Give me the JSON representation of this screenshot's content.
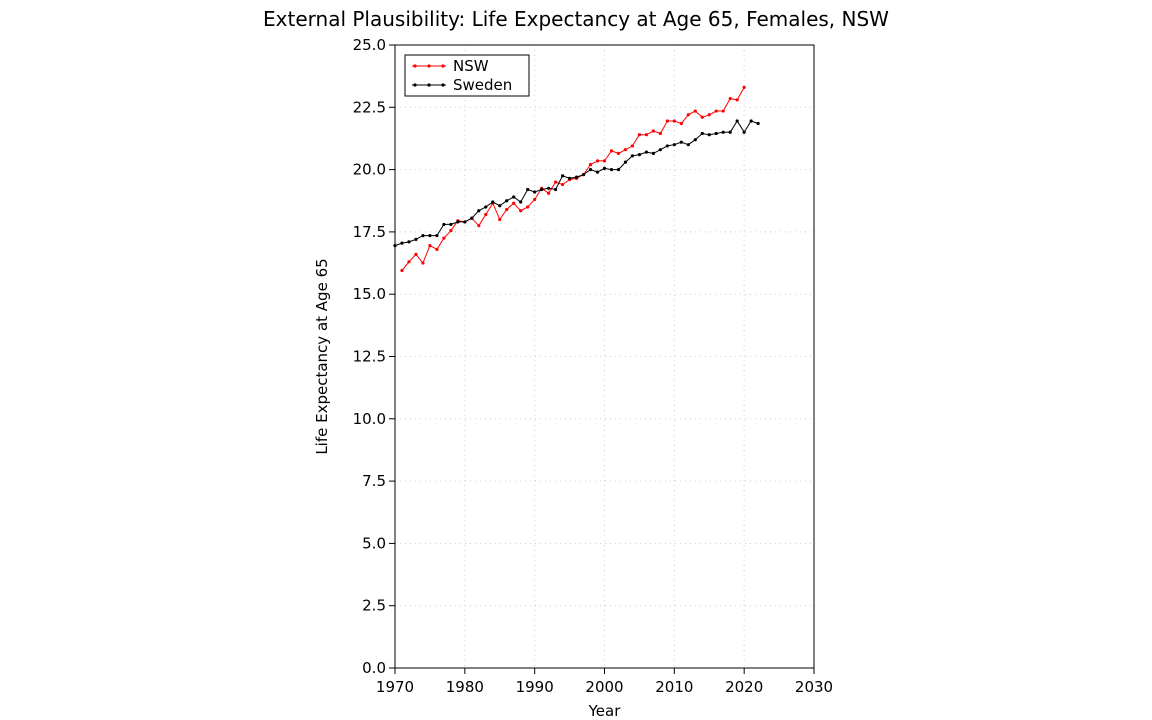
{
  "chart_data": {
    "type": "line",
    "title": "External Plausibility: Life Expectancy at Age 65, Females, NSW",
    "xlabel": "Year",
    "ylabel": "Life Expectancy at Age 65",
    "xlim": [
      1970,
      2030
    ],
    "ylim": [
      0,
      25
    ],
    "xticks": [
      1970,
      1980,
      1990,
      2000,
      2010,
      2020,
      2030
    ],
    "xtick_labels": [
      "1970",
      "1980",
      "1990",
      "2000",
      "2010",
      "2020",
      "2030"
    ],
    "yticks": [
      0,
      2.5,
      5,
      7.5,
      10,
      12.5,
      15,
      17.5,
      20,
      22.5,
      25
    ],
    "ytick_labels": [
      "0.0",
      "2.5",
      "5.0",
      "7.5",
      "10.0",
      "12.5",
      "15.0",
      "17.5",
      "20.0",
      "22.5",
      "25.0"
    ],
    "grid": true,
    "legend_position": "top-left",
    "series": [
      {
        "name": "NSW",
        "color": "#ff0000",
        "x": [
          1971,
          1972,
          1973,
          1974,
          1975,
          1976,
          1977,
          1978,
          1979,
          1980,
          1981,
          1982,
          1983,
          1984,
          1985,
          1986,
          1987,
          1988,
          1989,
          1990,
          1991,
          1992,
          1993,
          1994,
          1995,
          1996,
          1997,
          1998,
          1999,
          2000,
          2001,
          2002,
          2003,
          2004,
          2005,
          2006,
          2007,
          2008,
          2009,
          2010,
          2011,
          2012,
          2013,
          2014,
          2015,
          2016,
          2017,
          2018,
          2019,
          2020
        ],
        "y": [
          15.95,
          16.3,
          16.6,
          16.25,
          16.95,
          16.8,
          17.25,
          17.55,
          17.95,
          17.9,
          18.05,
          17.75,
          18.2,
          18.65,
          18.0,
          18.4,
          18.65,
          18.35,
          18.5,
          18.8,
          19.25,
          19.05,
          19.5,
          19.4,
          19.6,
          19.65,
          19.8,
          20.2,
          20.35,
          20.35,
          20.75,
          20.65,
          20.8,
          20.95,
          21.4,
          21.4,
          21.55,
          21.45,
          21.95,
          21.95,
          21.85,
          22.2,
          22.35,
          22.1,
          22.2,
          22.35,
          22.35,
          22.85,
          22.8,
          23.3
        ]
      },
      {
        "name": "Sweden",
        "color": "#000000",
        "x": [
          1970,
          1971,
          1972,
          1973,
          1974,
          1975,
          1976,
          1977,
          1978,
          1979,
          1980,
          1981,
          1982,
          1983,
          1984,
          1985,
          1986,
          1987,
          1988,
          1989,
          1990,
          1991,
          1992,
          1993,
          1994,
          1995,
          1996,
          1997,
          1998,
          1999,
          2000,
          2001,
          2002,
          2003,
          2004,
          2005,
          2006,
          2007,
          2008,
          2009,
          2010,
          2011,
          2012,
          2013,
          2014,
          2015,
          2016,
          2017,
          2018,
          2019,
          2020,
          2021,
          2022
        ],
        "y": [
          16.95,
          17.05,
          17.1,
          17.2,
          17.35,
          17.35,
          17.35,
          17.8,
          17.8,
          17.9,
          17.9,
          18.05,
          18.35,
          18.5,
          18.7,
          18.55,
          18.75,
          18.9,
          18.7,
          19.2,
          19.1,
          19.2,
          19.25,
          19.2,
          19.75,
          19.65,
          19.7,
          19.8,
          20.0,
          19.9,
          20.05,
          20.0,
          20.0,
          20.3,
          20.55,
          20.6,
          20.7,
          20.65,
          20.8,
          20.95,
          21.0,
          21.1,
          21.0,
          21.2,
          21.45,
          21.4,
          21.45,
          21.5,
          21.5,
          21.95,
          21.5,
          21.95,
          21.85
        ]
      }
    ]
  }
}
